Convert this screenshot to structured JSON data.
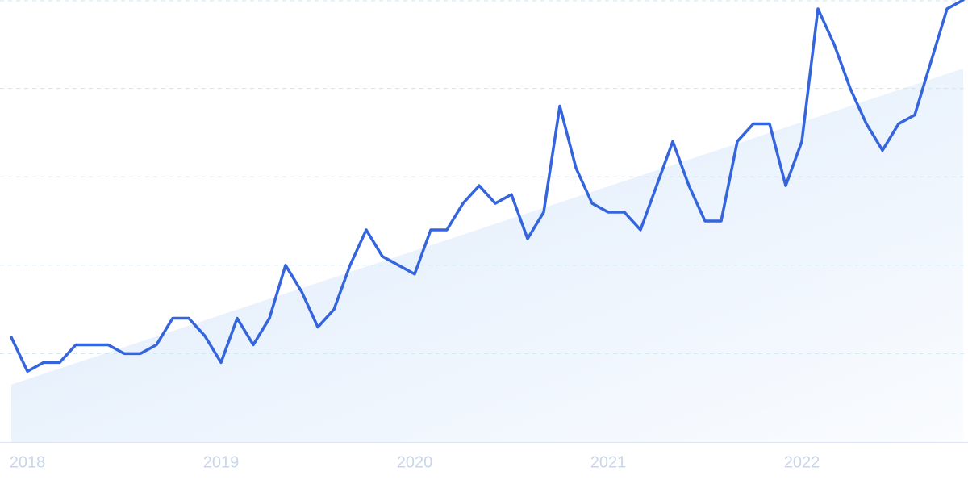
{
  "chart_data": {
    "type": "line",
    "categories": [
      null,
      "2018",
      null,
      null,
      null,
      null,
      null,
      null,
      null,
      null,
      null,
      null,
      null,
      "2019",
      null,
      null,
      null,
      null,
      null,
      null,
      null,
      null,
      null,
      null,
      null,
      "2020",
      null,
      null,
      null,
      null,
      null,
      null,
      null,
      null,
      null,
      null,
      null,
      "2021",
      null,
      null,
      null,
      null,
      null,
      null,
      null,
      null,
      null,
      null,
      null,
      "2022",
      null,
      null,
      null,
      null,
      null,
      null,
      null,
      null,
      null,
      null
    ],
    "series": [
      {
        "color": "#3565dd",
        "values": [
          23.7,
          16,
          18,
          18,
          22,
          22,
          22,
          20,
          20,
          22,
          28,
          28,
          24,
          18,
          28,
          22,
          28,
          40,
          34,
          26,
          30,
          40,
          48,
          42,
          40,
          38,
          48,
          48,
          54,
          58,
          54,
          56,
          46,
          52,
          76,
          62,
          54,
          52,
          52,
          48,
          58,
          68,
          58,
          50,
          50,
          68,
          72,
          72,
          58,
          68,
          98,
          90,
          80,
          72,
          66,
          72,
          74,
          86,
          98,
          100
        ]
      }
    ],
    "trend": {
      "color": "#dceafb",
      "values": [
        13,
        84.5
      ]
    },
    "ylim": [
      0,
      100
    ],
    "yticks": [
      20,
      40,
      60,
      80,
      100
    ],
    "grid": true
  }
}
